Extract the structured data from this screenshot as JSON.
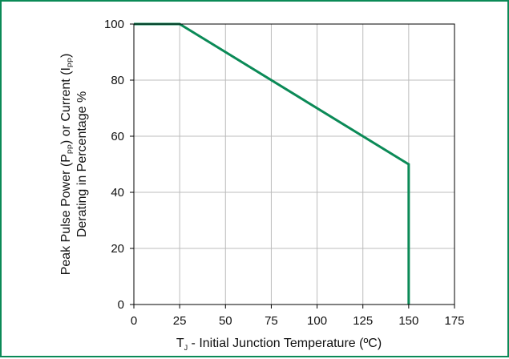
{
  "colors": {
    "frame_border": "#0b8a57",
    "series_line": "#0b8a57",
    "grid": "#bcbcbc",
    "axes": "#000000"
  },
  "chart_data": {
    "type": "line",
    "x": [
      0,
      25,
      150,
      150
    ],
    "y": [
      100,
      100,
      50,
      0
    ],
    "xlim": [
      0,
      175
    ],
    "ylim": [
      0,
      100
    ],
    "xticks": [
      "0",
      "25",
      "50",
      "75",
      "100",
      "125",
      "150",
      "175"
    ],
    "yticks": [
      "0",
      "20",
      "40",
      "60",
      "80",
      "100"
    ],
    "xlabel": {
      "prefix": "T",
      "sub": "J",
      "suffix": " - Initial Junction Temperature (ºC)"
    },
    "ylabel": {
      "line1_part1": "Peak Pulse Power (P",
      "line1_sub1": "PP",
      "line1_part2": ") or Current (I",
      "line1_sub2": "PP",
      "line1_part3": ")",
      "line2": "Derating in Percentage %"
    },
    "grid": true,
    "legend": "none"
  }
}
